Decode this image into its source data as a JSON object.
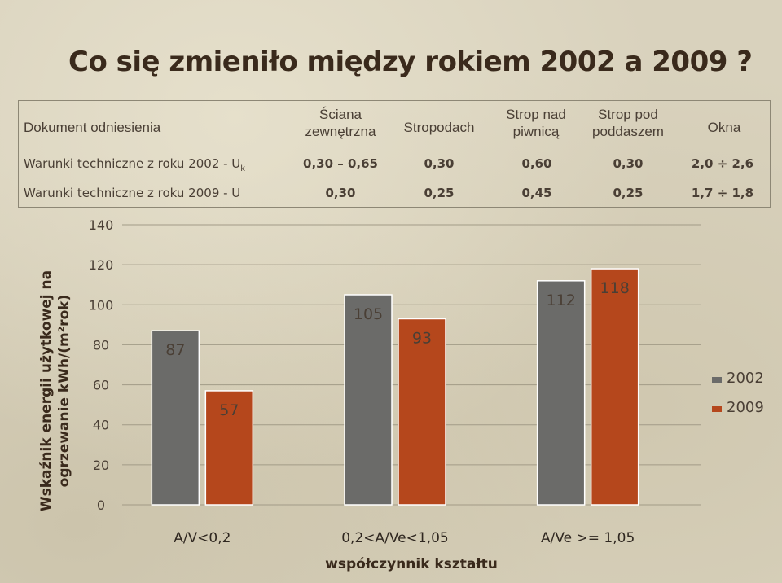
{
  "title": "Co się zmieniło między rokiem 2002 a 2009 ?",
  "reference_table": {
    "headers": [
      "Dokument odniesienia",
      "Ściana zewnętrzna",
      "Stropodach",
      "Strop nad piwnicą",
      "Strop pod poddaszem",
      "Okna"
    ],
    "rows": [
      {
        "label": "Warunki techniczne z roku 2002 - U",
        "label_sub": "k",
        "values": [
          "0,30 – 0,65",
          "0,30",
          "0,60",
          "0,30",
          "2,0 ÷ 2,6"
        ]
      },
      {
        "label": "Warunki techniczne z roku 2009 - U",
        "label_sub": "",
        "values": [
          "0,30",
          "0,25",
          "0,45",
          "0,25",
          "1,7 ÷ 1,8"
        ]
      }
    ]
  },
  "colors": {
    "series_2002": "#6b6b69",
    "series_2009": "#b5471c",
    "grid": "#a29b87",
    "text": "#4a3f35"
  },
  "chart_data": {
    "type": "bar",
    "categories": [
      "A/V<0,2",
      "0,2<A/Ve<1,05",
      "A/Ve >= 1,05"
    ],
    "series": [
      {
        "name": "2002",
        "values": [
          87,
          105,
          112
        ],
        "labels": [
          "87",
          "105",
          "112"
        ]
      },
      {
        "name": "2009",
        "values": [
          57,
          93,
          118
        ],
        "labels": [
          "57",
          "93",
          "118"
        ]
      }
    ],
    "xlabel": "współczynnik kształtu",
    "ylabel": "Wskaźnik energii użytkowej na ogrzewanie kWh/(m²rok)",
    "ylim": [
      0,
      140
    ],
    "yticks": [
      "0",
      "20",
      "40",
      "60",
      "80",
      "100",
      "120",
      "140"
    ],
    "grid": true,
    "legend": "right"
  }
}
